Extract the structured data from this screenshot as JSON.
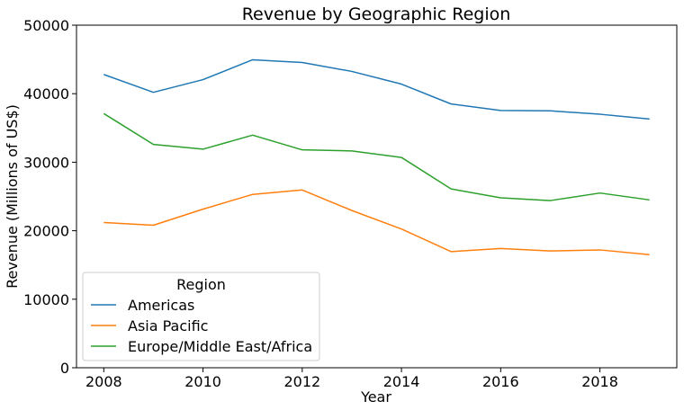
{
  "chart_data": {
    "type": "line",
    "title": "Revenue by Geographic Region",
    "xlabel": "Year",
    "ylabel": "Revenue (Millions of US$)",
    "x": [
      2008,
      2009,
      2010,
      2011,
      2012,
      2013,
      2014,
      2015,
      2016,
      2017,
      2018,
      2019
    ],
    "xlim": [
      2007.45,
      2019.55
    ],
    "ylim": [
      0,
      50000
    ],
    "xticks": [
      2008,
      2010,
      2012,
      2014,
      2016,
      2018
    ],
    "yticks": [
      0,
      10000,
      20000,
      30000,
      40000,
      50000
    ],
    "grid": false,
    "legend": {
      "title": "Region",
      "placement": "bottom-left"
    },
    "series": [
      {
        "name": "Americas",
        "color": "#1f77b4",
        "values": [
          42800,
          40200,
          42050,
          44950,
          44550,
          43250,
          41400,
          38500,
          37550,
          37500,
          37000,
          36300
        ]
      },
      {
        "name": "Asia Pacific",
        "color": "#ff7f0e",
        "values": [
          21200,
          20800,
          23150,
          25300,
          25950,
          22950,
          20250,
          16950,
          17400,
          17050,
          17200,
          16500
        ]
      },
      {
        "name": "Europe/Middle East/Africa",
        "color": "#2ca02c",
        "values": [
          37100,
          32600,
          31900,
          33950,
          31800,
          31650,
          30700,
          26100,
          24800,
          24400,
          25500,
          24500
        ]
      }
    ]
  }
}
